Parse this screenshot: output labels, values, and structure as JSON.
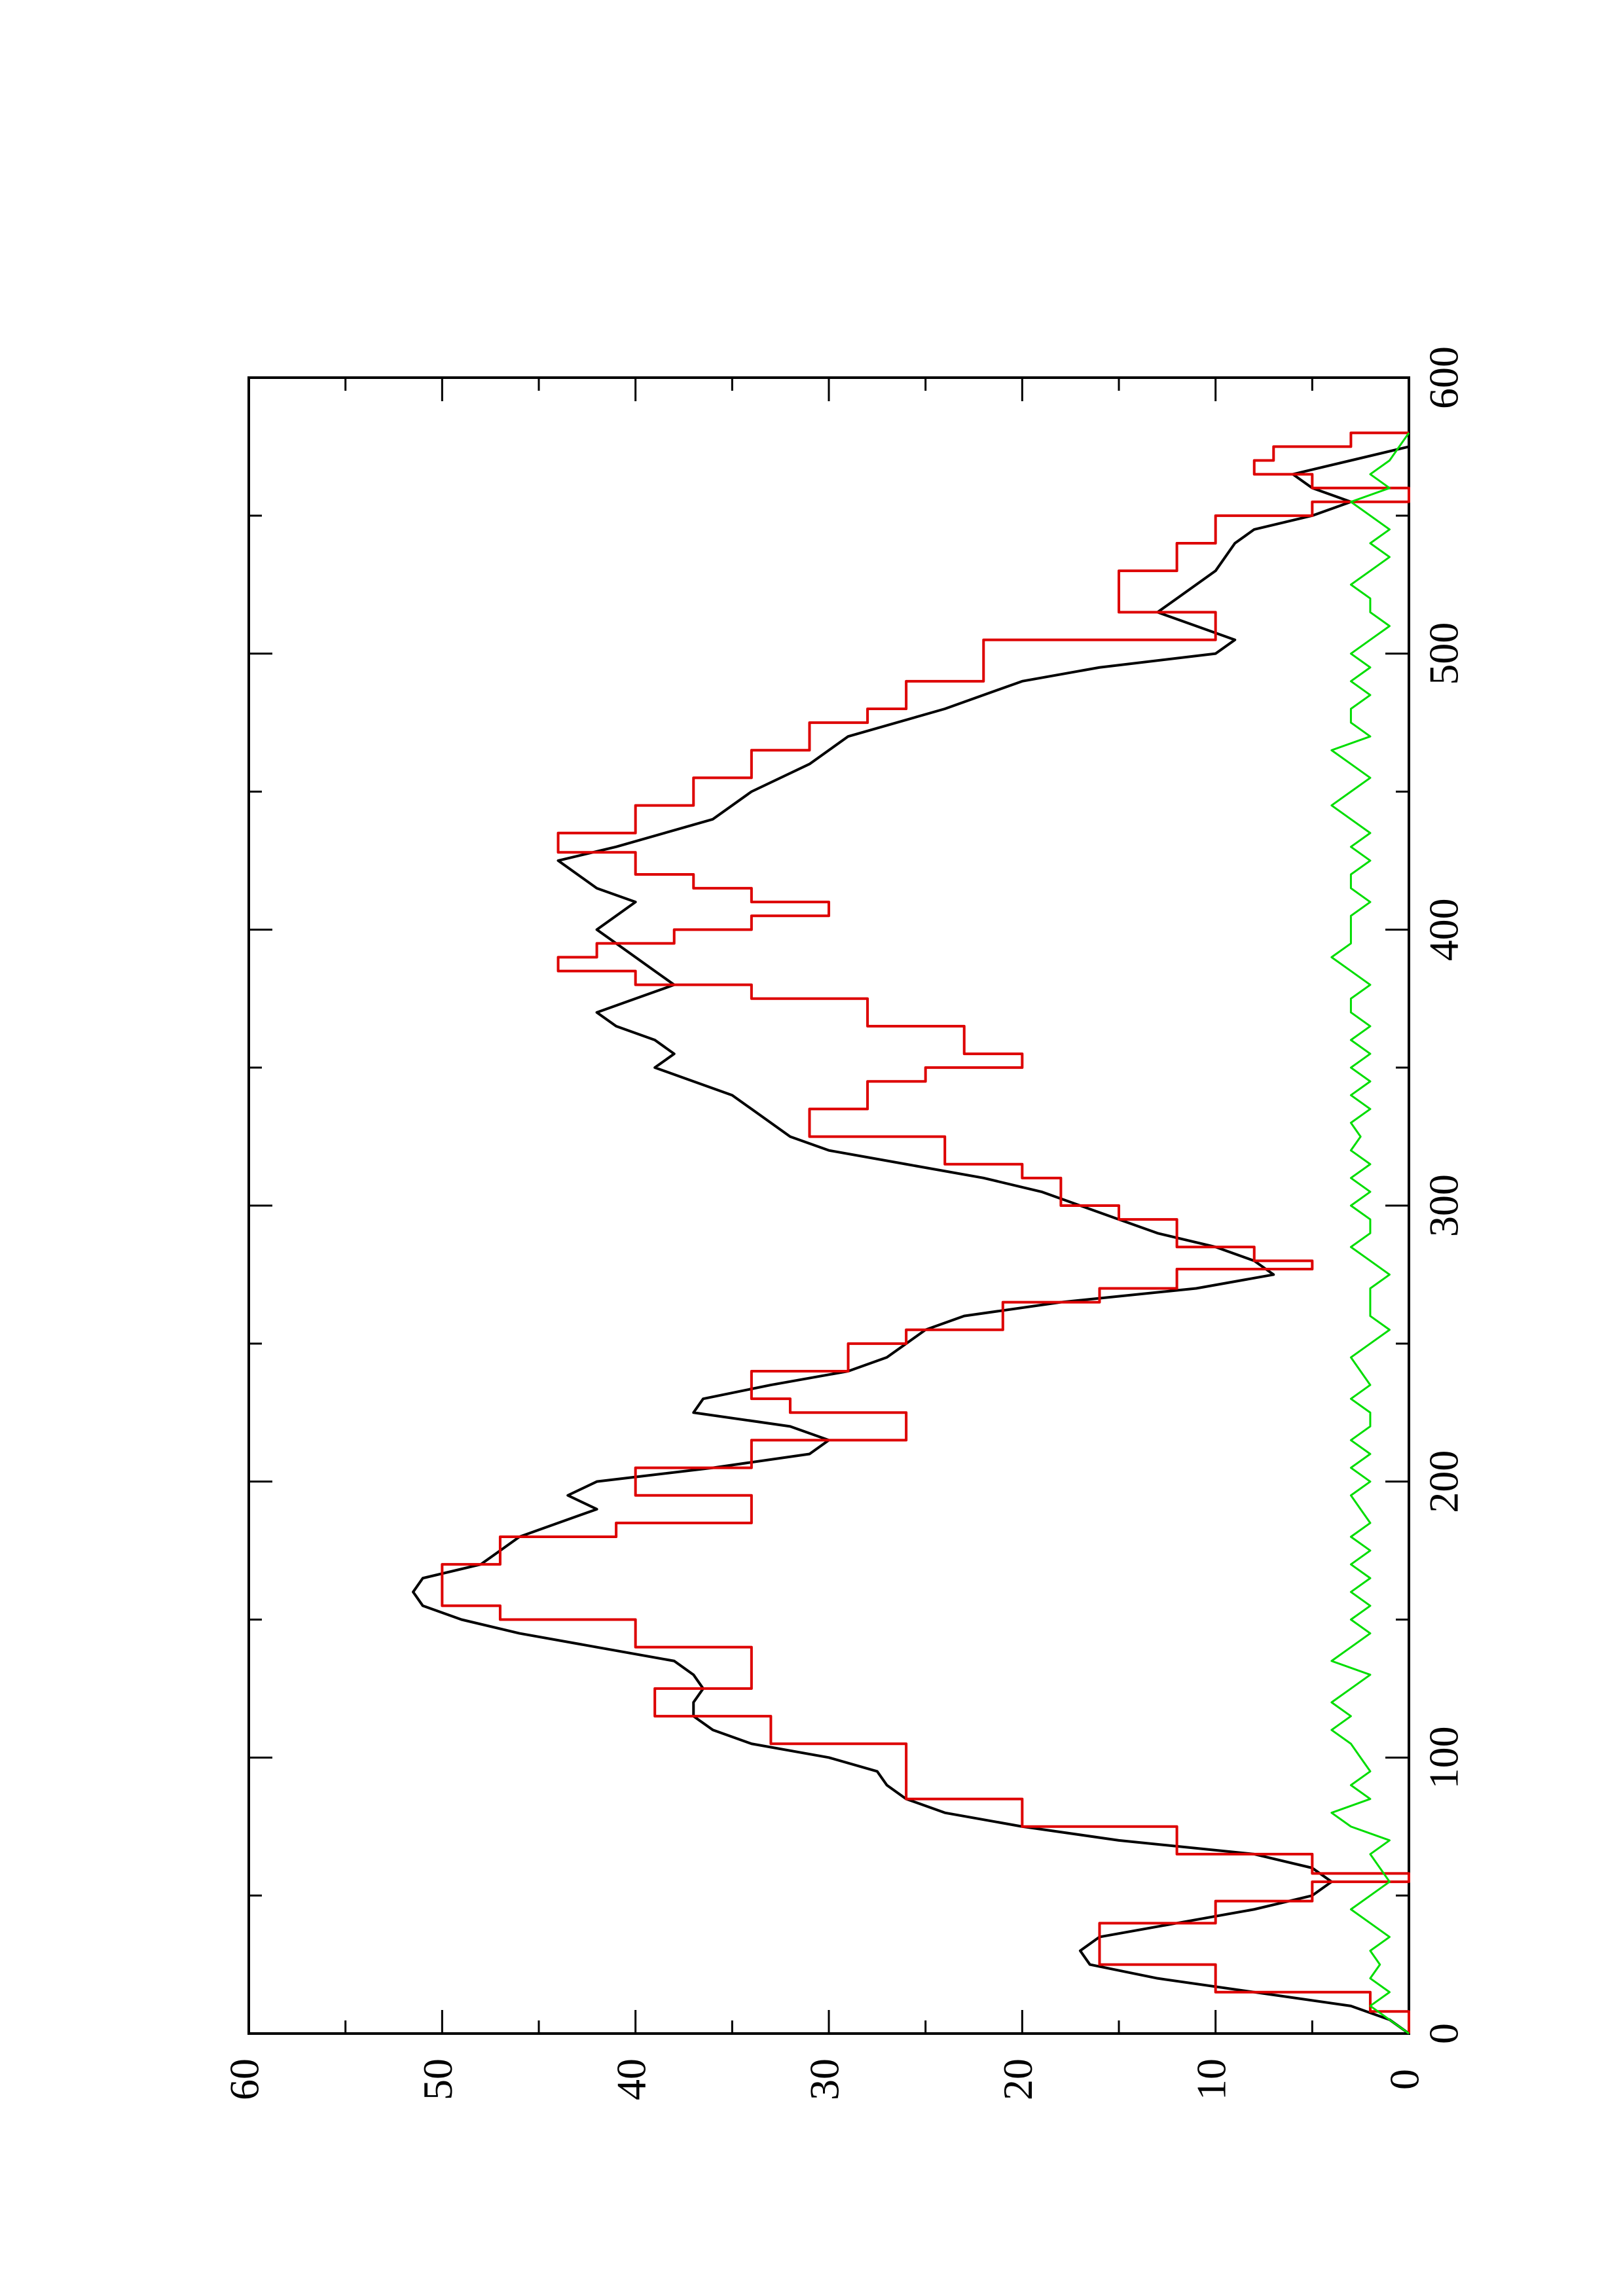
{
  "chart_data": {
    "type": "line",
    "orientation": "rotated-90-counterclockwise",
    "title": "",
    "xlabel": "",
    "ylabel": "",
    "xlim": [
      0,
      600
    ],
    "ylim": [
      0,
      60
    ],
    "x_ticks": [
      "0",
      "100",
      "200",
      "300",
      "400",
      "500",
      "600"
    ],
    "y_ticks": [
      "0",
      "10",
      "20",
      "30",
      "40",
      "50",
      "60"
    ],
    "grid": false,
    "legend": "none",
    "series": [
      {
        "color": "#000000",
        "style": "smooth",
        "points": [
          [
            0,
            0
          ],
          [
            5,
            1
          ],
          [
            10,
            3
          ],
          [
            15,
            8
          ],
          [
            20,
            13
          ],
          [
            25,
            16.5
          ],
          [
            30,
            17
          ],
          [
            35,
            16
          ],
          [
            40,
            12
          ],
          [
            45,
            8
          ],
          [
            50,
            5
          ],
          [
            55,
            4
          ],
          [
            60,
            5
          ],
          [
            65,
            8
          ],
          [
            70,
            15
          ],
          [
            75,
            20
          ],
          [
            80,
            24
          ],
          [
            85,
            26
          ],
          [
            90,
            27
          ],
          [
            95,
            27.5
          ],
          [
            100,
            30
          ],
          [
            105,
            34
          ],
          [
            110,
            36
          ],
          [
            115,
            37
          ],
          [
            120,
            37
          ],
          [
            125,
            36.5
          ],
          [
            130,
            37
          ],
          [
            135,
            38
          ],
          [
            140,
            42
          ],
          [
            145,
            46
          ],
          [
            150,
            49
          ],
          [
            155,
            51
          ],
          [
            160,
            51.5
          ],
          [
            165,
            51
          ],
          [
            170,
            48
          ],
          [
            175,
            47
          ],
          [
            180,
            46
          ],
          [
            185,
            44
          ],
          [
            190,
            42
          ],
          [
            195,
            43.5
          ],
          [
            200,
            42
          ],
          [
            205,
            36
          ],
          [
            210,
            31
          ],
          [
            215,
            30
          ],
          [
            220,
            32
          ],
          [
            225,
            37
          ],
          [
            230,
            36.5
          ],
          [
            235,
            33
          ],
          [
            240,
            29
          ],
          [
            245,
            27
          ],
          [
            250,
            26
          ],
          [
            255,
            25
          ],
          [
            260,
            23
          ],
          [
            265,
            18
          ],
          [
            270,
            11
          ],
          [
            275,
            7
          ],
          [
            280,
            8
          ],
          [
            285,
            10
          ],
          [
            290,
            13
          ],
          [
            295,
            15
          ],
          [
            300,
            17
          ],
          [
            305,
            19
          ],
          [
            310,
            22
          ],
          [
            315,
            26
          ],
          [
            320,
            30
          ],
          [
            325,
            32
          ],
          [
            330,
            33
          ],
          [
            335,
            34
          ],
          [
            340,
            35
          ],
          [
            345,
            37
          ],
          [
            350,
            39
          ],
          [
            355,
            38
          ],
          [
            360,
            39
          ],
          [
            365,
            41
          ],
          [
            370,
            42
          ],
          [
            375,
            40
          ],
          [
            380,
            38
          ],
          [
            385,
            39
          ],
          [
            390,
            40
          ],
          [
            395,
            41
          ],
          [
            400,
            42
          ],
          [
            405,
            41
          ],
          [
            410,
            40
          ],
          [
            415,
            42
          ],
          [
            420,
            43
          ],
          [
            425,
            44
          ],
          [
            430,
            41
          ],
          [
            440,
            36
          ],
          [
            450,
            34
          ],
          [
            460,
            31
          ],
          [
            470,
            29
          ],
          [
            480,
            24
          ],
          [
            490,
            20
          ],
          [
            495,
            16
          ],
          [
            500,
            10
          ],
          [
            505,
            9
          ],
          [
            510,
            11
          ],
          [
            515,
            13
          ],
          [
            520,
            12
          ],
          [
            525,
            11
          ],
          [
            530,
            10
          ],
          [
            540,
            9
          ],
          [
            545,
            8
          ],
          [
            550,
            5
          ],
          [
            555,
            3
          ],
          [
            560,
            5
          ],
          [
            565,
            6
          ],
          [
            570,
            3
          ],
          [
            575,
            0
          ]
        ]
      },
      {
        "color": "#dd0000",
        "style": "step",
        "points": [
          [
            0,
            0
          ],
          [
            8,
            2
          ],
          [
            15,
            10
          ],
          [
            25,
            16
          ],
          [
            30,
            16
          ],
          [
            40,
            10
          ],
          [
            48,
            5
          ],
          [
            55,
            0
          ],
          [
            58,
            5
          ],
          [
            65,
            12
          ],
          [
            75,
            20
          ],
          [
            85,
            26
          ],
          [
            100,
            26
          ],
          [
            105,
            33
          ],
          [
            115,
            39
          ],
          [
            120,
            39
          ],
          [
            125,
            34
          ],
          [
            135,
            34
          ],
          [
            140,
            40
          ],
          [
            150,
            47
          ],
          [
            155,
            50
          ],
          [
            165,
            50
          ],
          [
            170,
            47
          ],
          [
            180,
            41
          ],
          [
            185,
            34
          ],
          [
            195,
            40
          ],
          [
            200,
            40
          ],
          [
            205,
            34
          ],
          [
            215,
            26
          ],
          [
            220,
            26
          ],
          [
            225,
            32
          ],
          [
            230,
            34
          ],
          [
            240,
            29
          ],
          [
            250,
            26
          ],
          [
            255,
            21
          ],
          [
            260,
            21
          ],
          [
            265,
            16
          ],
          [
            270,
            12
          ],
          [
            277,
            5
          ],
          [
            280,
            8
          ],
          [
            285,
            12
          ],
          [
            295,
            15
          ],
          [
            300,
            18
          ],
          [
            310,
            20
          ],
          [
            315,
            24
          ],
          [
            325,
            31
          ],
          [
            330,
            31
          ],
          [
            335,
            28
          ],
          [
            345,
            25
          ],
          [
            350,
            20
          ],
          [
            355,
            23
          ],
          [
            365,
            28
          ],
          [
            375,
            34
          ],
          [
            380,
            40
          ],
          [
            385,
            44
          ],
          [
            390,
            42
          ],
          [
            395,
            38
          ],
          [
            400,
            34
          ],
          [
            405,
            30
          ],
          [
            410,
            34
          ],
          [
            415,
            37
          ],
          [
            420,
            40
          ],
          [
            428,
            44
          ],
          [
            435,
            40
          ],
          [
            440,
            40
          ],
          [
            445,
            37
          ],
          [
            455,
            34
          ],
          [
            465,
            31
          ],
          [
            475,
            28
          ],
          [
            480,
            26
          ],
          [
            490,
            22
          ],
          [
            505,
            10
          ],
          [
            510,
            10
          ],
          [
            515,
            15
          ],
          [
            525,
            15
          ],
          [
            530,
            12
          ],
          [
            540,
            10
          ],
          [
            550,
            5
          ],
          [
            555,
            0
          ],
          [
            560,
            5
          ],
          [
            565,
            8
          ],
          [
            570,
            7
          ],
          [
            575,
            3
          ],
          [
            580,
            0
          ]
        ]
      },
      {
        "color": "#00dd00",
        "style": "noisy",
        "points": [
          [
            0,
            0
          ],
          [
            5,
            1
          ],
          [
            10,
            2
          ],
          [
            15,
            1
          ],
          [
            20,
            2
          ],
          [
            25,
            1.5
          ],
          [
            30,
            2
          ],
          [
            35,
            1
          ],
          [
            40,
            2
          ],
          [
            45,
            3
          ],
          [
            50,
            2
          ],
          [
            55,
            1
          ],
          [
            60,
            1.5
          ],
          [
            65,
            2
          ],
          [
            70,
            1
          ],
          [
            75,
            3
          ],
          [
            80,
            4
          ],
          [
            85,
            2
          ],
          [
            90,
            3
          ],
          [
            95,
            2
          ],
          [
            100,
            2.5
          ],
          [
            105,
            3
          ],
          [
            110,
            4
          ],
          [
            115,
            3
          ],
          [
            120,
            4
          ],
          [
            125,
            3
          ],
          [
            130,
            2
          ],
          [
            135,
            4
          ],
          [
            140,
            3
          ],
          [
            145,
            2
          ],
          [
            150,
            3
          ],
          [
            155,
            2
          ],
          [
            160,
            3
          ],
          [
            165,
            2
          ],
          [
            170,
            3
          ],
          [
            175,
            2
          ],
          [
            180,
            3
          ],
          [
            185,
            2
          ],
          [
            190,
            2.5
          ],
          [
            195,
            3
          ],
          [
            200,
            2
          ],
          [
            205,
            3
          ],
          [
            210,
            2
          ],
          [
            215,
            3
          ],
          [
            220,
            2
          ],
          [
            225,
            2
          ],
          [
            230,
            3
          ],
          [
            235,
            2
          ],
          [
            240,
            2.5
          ],
          [
            245,
            3
          ],
          [
            250,
            2
          ],
          [
            255,
            1
          ],
          [
            260,
            2
          ],
          [
            265,
            2
          ],
          [
            270,
            2
          ],
          [
            275,
            1
          ],
          [
            280,
            2
          ],
          [
            285,
            3
          ],
          [
            290,
            2
          ],
          [
            295,
            2
          ],
          [
            300,
            3
          ],
          [
            305,
            2
          ],
          [
            310,
            3
          ],
          [
            315,
            2
          ],
          [
            320,
            3
          ],
          [
            325,
            2.5
          ],
          [
            330,
            3
          ],
          [
            335,
            2
          ],
          [
            340,
            3
          ],
          [
            345,
            2
          ],
          [
            350,
            3
          ],
          [
            355,
            2
          ],
          [
            360,
            3
          ],
          [
            365,
            2
          ],
          [
            370,
            3
          ],
          [
            375,
            3
          ],
          [
            380,
            2
          ],
          [
            385,
            3
          ],
          [
            390,
            4
          ],
          [
            395,
            3
          ],
          [
            400,
            3
          ],
          [
            405,
            3
          ],
          [
            410,
            2
          ],
          [
            415,
            3
          ],
          [
            420,
            3
          ],
          [
            425,
            2
          ],
          [
            430,
            3
          ],
          [
            435,
            2
          ],
          [
            440,
            3
          ],
          [
            445,
            4
          ],
          [
            450,
            3
          ],
          [
            455,
            2
          ],
          [
            460,
            3
          ],
          [
            465,
            4
          ],
          [
            470,
            2
          ],
          [
            475,
            3
          ],
          [
            480,
            3
          ],
          [
            485,
            2
          ],
          [
            490,
            3
          ],
          [
            495,
            2
          ],
          [
            500,
            3
          ],
          [
            505,
            2
          ],
          [
            510,
            1
          ],
          [
            515,
            2
          ],
          [
            520,
            2
          ],
          [
            525,
            3
          ],
          [
            530,
            2
          ],
          [
            535,
            1
          ],
          [
            540,
            2
          ],
          [
            545,
            1
          ],
          [
            550,
            2
          ],
          [
            555,
            3
          ],
          [
            560,
            1
          ],
          [
            565,
            2
          ],
          [
            570,
            1
          ],
          [
            575,
            0.5
          ],
          [
            580,
            0
          ]
        ]
      }
    ]
  }
}
